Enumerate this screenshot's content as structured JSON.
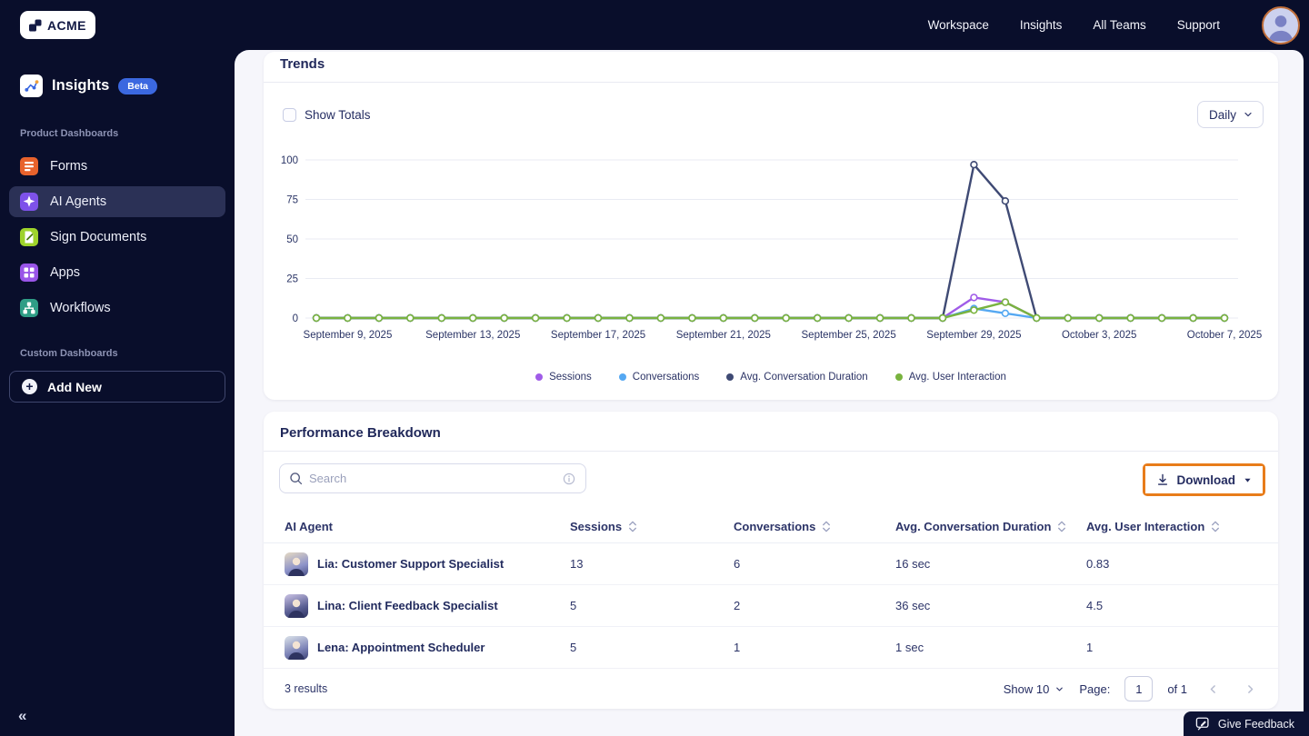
{
  "topbar": {
    "brand": "ACME",
    "links": [
      "Workspace",
      "Insights",
      "All Teams",
      "Support"
    ]
  },
  "sidebar": {
    "app_title": "Insights",
    "app_badge": "Beta",
    "product_section_label": "Product Dashboards",
    "items": [
      {
        "label": "Forms",
        "icon": "forms-icon",
        "color": "#e8622c",
        "active": false
      },
      {
        "label": "AI Agents",
        "icon": "ai-agents-icon",
        "color": "#7e52ea",
        "active": true
      },
      {
        "label": "Sign Documents",
        "icon": "sign-documents-icon",
        "color": "#9ed32b",
        "active": false
      },
      {
        "label": "Apps",
        "icon": "apps-icon",
        "color": "#9955e8",
        "active": false
      },
      {
        "label": "Workflows",
        "icon": "workflows-icon",
        "color": "#2f9d86",
        "active": false
      }
    ],
    "custom_section_label": "Custom Dashboards",
    "add_new_label": "Add New",
    "collapse_glyph": "«"
  },
  "trends": {
    "title": "Trends",
    "show_totals_label": "Show Totals",
    "show_totals_checked": false,
    "interval_value": "Daily"
  },
  "chart_data": {
    "type": "line",
    "title": "Trends",
    "grid": true,
    "legend_position": "bottom",
    "ylim": [
      0,
      100
    ],
    "yticks": [
      0,
      25,
      50,
      75,
      100
    ],
    "x": [
      "September 8, 2025",
      "September 9, 2025",
      "September 10, 2025",
      "September 11, 2025",
      "September 12, 2025",
      "September 13, 2025",
      "September 14, 2025",
      "September 15, 2025",
      "September 16, 2025",
      "September 17, 2025",
      "September 18, 2025",
      "September 19, 2025",
      "September 20, 2025",
      "September 21, 2025",
      "September 22, 2025",
      "September 23, 2025",
      "September 24, 2025",
      "September 25, 2025",
      "September 26, 2025",
      "September 27, 2025",
      "September 28, 2025",
      "September 29, 2025",
      "September 30, 2025",
      "October 1, 2025",
      "October 2, 2025",
      "October 3, 2025",
      "October 4, 2025",
      "October 5, 2025",
      "October 6, 2025",
      "October 7, 2025"
    ],
    "xtick_indices": [
      1,
      5,
      9,
      13,
      17,
      21,
      25,
      29
    ],
    "xtick_labels": [
      "September 9, 2025",
      "September 13, 2025",
      "September 17, 2025",
      "September 21, 2025",
      "September 25, 2025",
      "September 29, 2025",
      "October 3, 2025",
      "October 7, 2025"
    ],
    "series": [
      {
        "name": "Sessions",
        "color": "#a05ce8",
        "values": [
          0,
          0,
          0,
          0,
          0,
          0,
          0,
          0,
          0,
          0,
          0,
          0,
          0,
          0,
          0,
          0,
          0,
          0,
          0,
          0,
          0,
          13,
          10,
          0,
          0,
          0,
          0,
          0,
          0,
          0
        ]
      },
      {
        "name": "Conversations",
        "color": "#55a8f2",
        "values": [
          0,
          0,
          0,
          0,
          0,
          0,
          0,
          0,
          0,
          0,
          0,
          0,
          0,
          0,
          0,
          0,
          0,
          0,
          0,
          0,
          0,
          6,
          3,
          0,
          0,
          0,
          0,
          0,
          0,
          0
        ]
      },
      {
        "name": "Avg. Conversation Duration",
        "color": "#3f4a74",
        "values": [
          0,
          0,
          0,
          0,
          0,
          0,
          0,
          0,
          0,
          0,
          0,
          0,
          0,
          0,
          0,
          0,
          0,
          0,
          0,
          0,
          0,
          97,
          74,
          0,
          0,
          0,
          0,
          0,
          0,
          0
        ]
      },
      {
        "name": "Avg. User Interaction",
        "color": "#79b33f",
        "values": [
          0,
          0,
          0,
          0,
          0,
          0,
          0,
          0,
          0,
          0,
          0,
          0,
          0,
          0,
          0,
          0,
          0,
          0,
          0,
          0,
          0,
          5,
          10,
          0,
          0,
          0,
          0,
          0,
          0,
          0
        ]
      }
    ]
  },
  "performance": {
    "title": "Performance Breakdown",
    "search_placeholder": "Search",
    "download_label": "Download",
    "columns": [
      "AI Agent",
      "Sessions",
      "Conversations",
      "Avg. Conversation Duration",
      "Avg. User Interaction"
    ],
    "rows": [
      {
        "name": "Lia: Customer Support Specialist",
        "sessions": "13",
        "conversations": "6",
        "duration": "16 sec",
        "interaction": "0.83"
      },
      {
        "name": "Lina: Client Feedback Specialist",
        "sessions": "5",
        "conversations": "2",
        "duration": "36 sec",
        "interaction": "4.5"
      },
      {
        "name": "Lena: Appointment Scheduler",
        "sessions": "5",
        "conversations": "1",
        "duration": "1 sec",
        "interaction": "1"
      }
    ],
    "footer": {
      "results": "3 results",
      "show_label": "Show 10",
      "page_label": "Page:",
      "page_value": "1",
      "of_label": "of 1"
    }
  },
  "feedback_label": "Give Feedback",
  "colors": {
    "highlight_orange": "#e87c1a",
    "beta_blue": "#3b68e0",
    "topbar_navy": "#090e2b",
    "panel_bg": "#f6f6fb"
  }
}
